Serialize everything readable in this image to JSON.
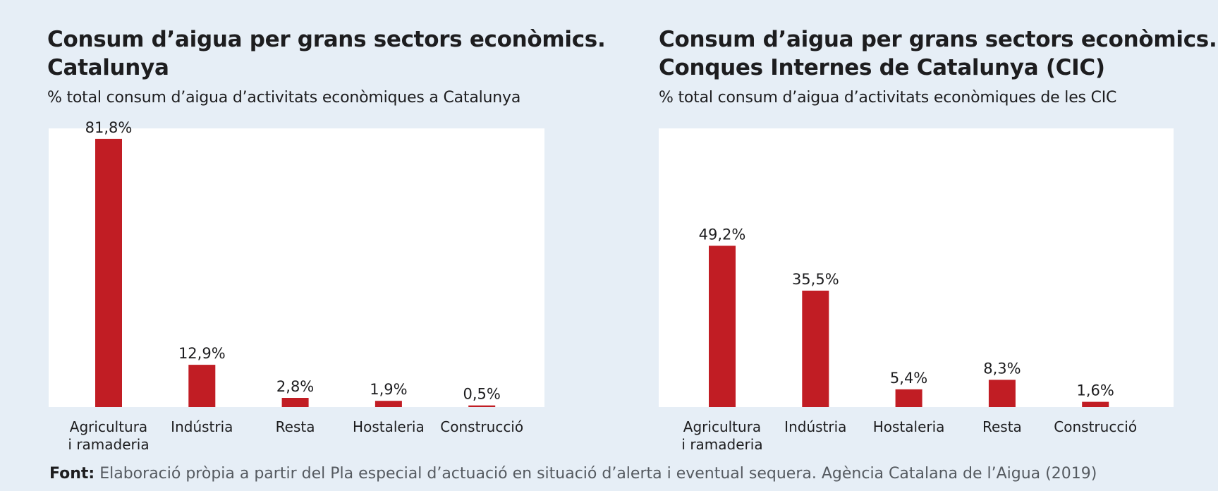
{
  "colors": {
    "background": "#e6eef6",
    "plot_background": "#ffffff",
    "bar": "#c11d24",
    "text": "#1d1d1f"
  },
  "chart_data": [
    {
      "type": "bar",
      "title_lines": [
        "Consum d’aigua per grans sectors econòmics.",
        "Catalunya"
      ],
      "subtitle": "% total consum d’aigua d’activitats econòmiques a Catalunya",
      "categories": [
        [
          "Agricultura",
          "i ramaderia"
        ],
        [
          "Indústria"
        ],
        [
          "Resta"
        ],
        [
          "Hostaleria"
        ],
        [
          "Construcció"
        ]
      ],
      "values": [
        81.8,
        12.9,
        2.8,
        1.9,
        0.5
      ],
      "data_labels": [
        "81,8%",
        "12,9%",
        "2,8%",
        "1,9%",
        "0,5%"
      ],
      "xlabel": "",
      "ylabel": "",
      "ylim": [
        0,
        85
      ],
      "grid": false,
      "legend": "none"
    },
    {
      "type": "bar",
      "title_lines": [
        "Consum d’aigua per grans sectors econòmics.",
        "Conques Internes de Catalunya (CIC)"
      ],
      "subtitle": "% total consum d’aigua d’activitats econòmiques de les CIC",
      "categories": [
        [
          "Agricultura",
          "i ramaderia"
        ],
        [
          "Indústria"
        ],
        [
          "Hostaleria"
        ],
        [
          "Resta"
        ],
        [
          "Construcció"
        ]
      ],
      "values": [
        49.2,
        35.5,
        5.4,
        8.3,
        1.6
      ],
      "data_labels": [
        "49,2%",
        "35,5%",
        "5,4%",
        "8,3%",
        "1,6%"
      ],
      "xlabel": "",
      "ylabel": "",
      "ylim": [
        0,
        85
      ],
      "grid": false,
      "legend": "none"
    }
  ],
  "footer": {
    "label": "Font:",
    "text": " Elaboració pròpia a partir del Pla especial d’actuació en situació d’alerta i eventual sequera. Agència Catalana de l’Aigua (2019)"
  }
}
